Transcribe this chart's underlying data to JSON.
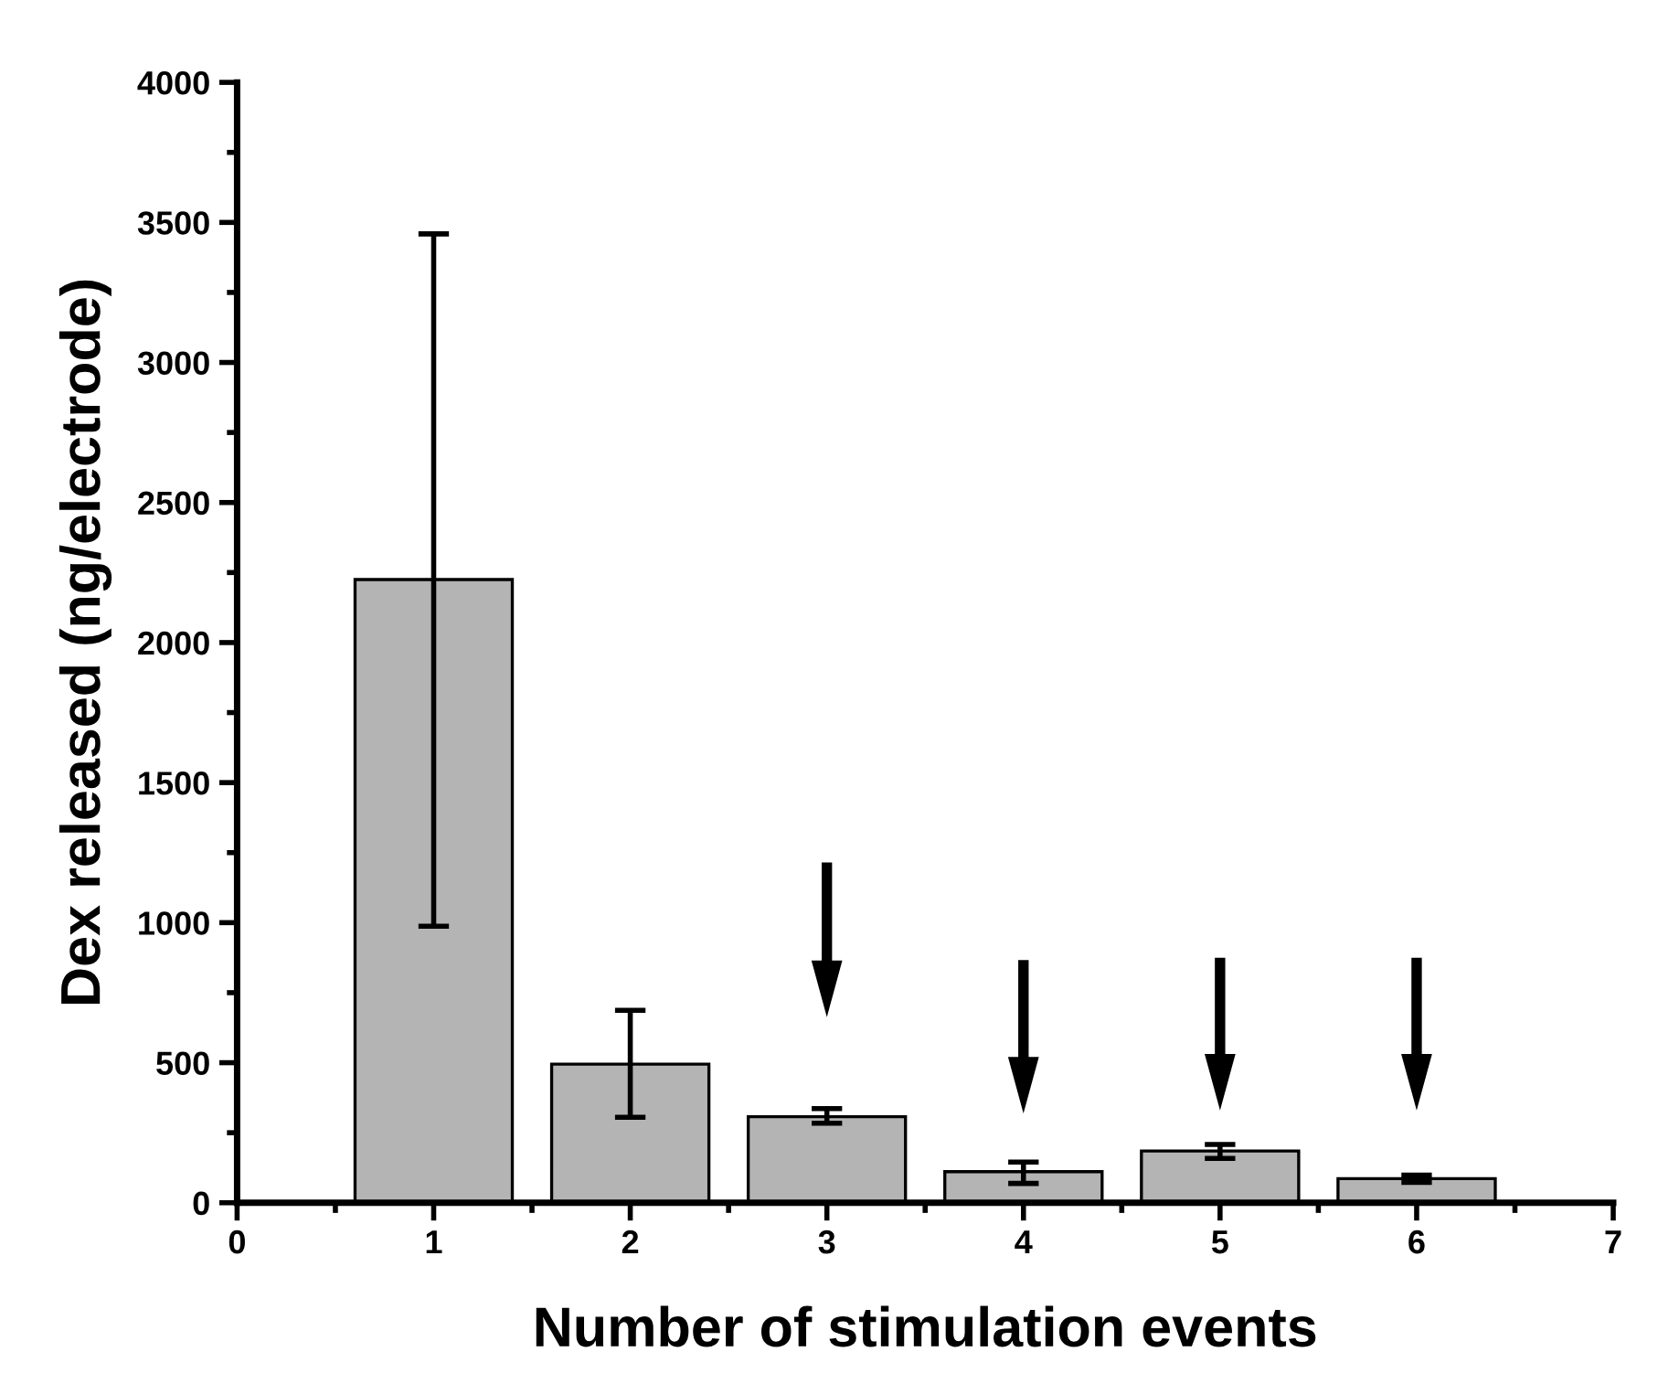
{
  "chart_data": {
    "type": "bar",
    "xlabel": "Number of stimulation events",
    "ylabel": "Dex released (ng/electrode)",
    "x": [
      1,
      2,
      3,
      4,
      5,
      6
    ],
    "values": [
      2225,
      495,
      307,
      111,
      185,
      86
    ],
    "errors": [
      [
        987,
        3459
      ],
      [
        305,
        687
      ],
      [
        284,
        336
      ],
      [
        69,
        145
      ],
      [
        158,
        208
      ],
      [
        73,
        99
      ]
    ],
    "color": "#b4b4b4",
    "xlim": [
      0,
      7
    ],
    "xticks": [
      0,
      1,
      2,
      3,
      4,
      5,
      6,
      7
    ],
    "ylim": [
      0,
      4000
    ],
    "yticks": [
      0,
      500,
      1000,
      1500,
      2000,
      2500,
      3000,
      3500,
      4000
    ],
    "grid": false
  }
}
